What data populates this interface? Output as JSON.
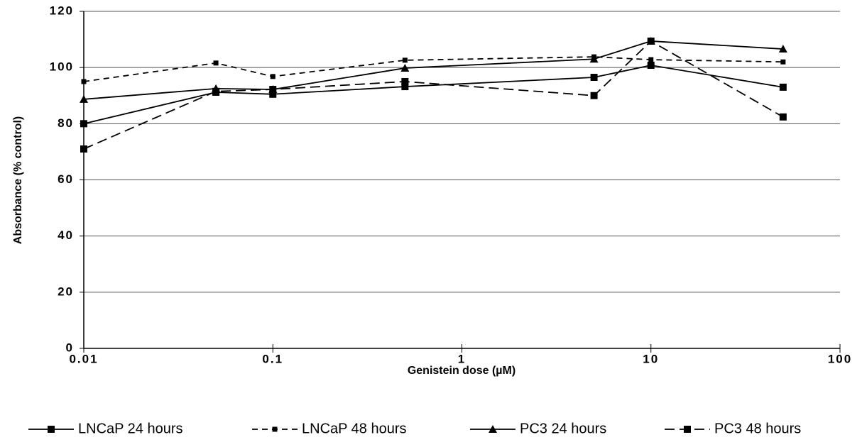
{
  "chart_data": {
    "type": "line",
    "x_label": "Genistein dose (µM)",
    "y_label": "Absorbance (% control)",
    "x": [
      0.01,
      0.05,
      0.1,
      0.5,
      5,
      10,
      50
    ],
    "xscale": "log",
    "xlim": [
      0.01,
      100
    ],
    "xticks": [
      0.01,
      0.1,
      1,
      10,
      100
    ],
    "ylim": [
      0,
      120
    ],
    "yticks": [
      0,
      20,
      40,
      60,
      80,
      100,
      120
    ],
    "grid": true,
    "legend": "bottom",
    "series": [
      {
        "name": "LNCaP 24 hours",
        "color": "#000000",
        "marker": "square",
        "dash": "solid",
        "values": [
          80,
          91.2,
          90.5,
          93.2,
          96.5,
          100.8,
          93
        ]
      },
      {
        "name": "LNCaP 48 hours",
        "color": "#000000",
        "marker": "small-square",
        "dash": "short",
        "values": [
          95,
          101.6,
          96.8,
          102.6,
          103.8,
          102.8,
          102
        ]
      },
      {
        "name": "PC3 24 hours",
        "color": "#000000",
        "marker": "triangle",
        "dash": "solid",
        "values": [
          88.7,
          92.5,
          92.2,
          99.8,
          103,
          109.4,
          106.6
        ]
      },
      {
        "name": "PC3 48 hours",
        "color": "#000000",
        "marker": "square",
        "dash": "long",
        "values": [
          71,
          91.5,
          92.2,
          95,
          90,
          109.4,
          82.4
        ]
      }
    ]
  }
}
